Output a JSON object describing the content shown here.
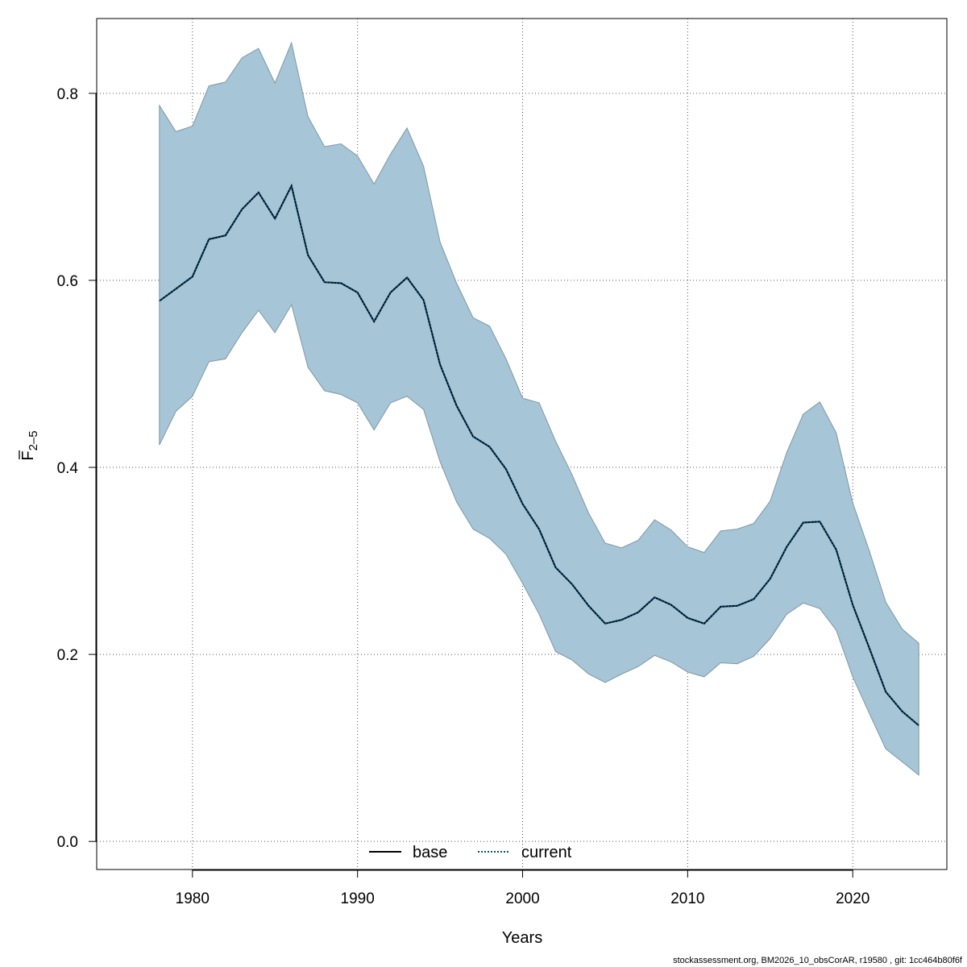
{
  "chart_data": {
    "type": "area",
    "title": "",
    "xlabel": "Years",
    "ylabel_main": "F",
    "ylabel_sub": "2–5",
    "xlim": [
      1974.2,
      2025.7
    ],
    "ylim": [
      -0.03,
      0.88
    ],
    "x_ticks": [
      1980,
      1990,
      2000,
      2010,
      2020
    ],
    "x_tick_labels": [
      "1980",
      "1990",
      "2000",
      "2010",
      "2020"
    ],
    "y_ticks": [
      0.0,
      0.2,
      0.4,
      0.6,
      0.8
    ],
    "y_tick_labels": [
      "0.0",
      "0.2",
      "0.4",
      "0.6",
      "0.8"
    ],
    "grid": true,
    "colors": {
      "band": "#a6c5d6",
      "band_edge": "#7f97a5",
      "current": "#004e7a",
      "base": "#000000",
      "grid": "#555555"
    },
    "x": [
      1978,
      1979,
      1980,
      1981,
      1982,
      1983,
      1984,
      1985,
      1986,
      1987,
      1988,
      1989,
      1990,
      1991,
      1992,
      1993,
      1994,
      1995,
      1996,
      1997,
      1998,
      1999,
      2000,
      2001,
      2002,
      2003,
      2004,
      2005,
      2006,
      2007,
      2008,
      2009,
      2010,
      2011,
      2012,
      2013,
      2014,
      2015,
      2016,
      2017,
      2018,
      2019,
      2020,
      2021,
      2022,
      2023,
      2024
    ],
    "upper": [
      0.787,
      0.759,
      0.765,
      0.808,
      0.812,
      0.838,
      0.848,
      0.811,
      0.854,
      0.775,
      0.743,
      0.746,
      0.733,
      0.703,
      0.735,
      0.763,
      0.722,
      0.641,
      0.597,
      0.56,
      0.551,
      0.516,
      0.474,
      0.469,
      0.428,
      0.392,
      0.351,
      0.319,
      0.314,
      0.322,
      0.344,
      0.333,
      0.315,
      0.309,
      0.332,
      0.334,
      0.34,
      0.364,
      0.416,
      0.457,
      0.47,
      0.437,
      0.362,
      0.311,
      0.256,
      0.227,
      0.212
    ],
    "lower": [
      0.424,
      0.46,
      0.476,
      0.513,
      0.516,
      0.544,
      0.568,
      0.544,
      0.574,
      0.507,
      0.482,
      0.478,
      0.469,
      0.44,
      0.469,
      0.476,
      0.462,
      0.406,
      0.363,
      0.334,
      0.324,
      0.307,
      0.276,
      0.243,
      0.203,
      0.194,
      0.179,
      0.17,
      0.179,
      0.187,
      0.199,
      0.192,
      0.181,
      0.176,
      0.191,
      0.19,
      0.198,
      0.217,
      0.243,
      0.255,
      0.249,
      0.226,
      0.176,
      0.137,
      0.099,
      0.085,
      0.071
    ],
    "series": [
      {
        "name": "base",
        "style": "solid",
        "values": [
          0.578,
          0.591,
          0.604,
          0.644,
          0.648,
          0.676,
          0.694,
          0.666,
          0.701,
          0.627,
          0.598,
          0.597,
          0.587,
          0.556,
          0.587,
          0.603,
          0.579,
          0.51,
          0.466,
          0.433,
          0.422,
          0.398,
          0.361,
          0.334,
          0.293,
          0.275,
          0.252,
          0.233,
          0.237,
          0.245,
          0.261,
          0.253,
          0.239,
          0.233,
          0.251,
          0.252,
          0.259,
          0.281,
          0.315,
          0.341,
          0.342,
          0.312,
          0.253,
          0.207,
          0.16,
          0.139,
          0.124
        ]
      },
      {
        "name": "current",
        "style": "dotted",
        "values": [
          0.578,
          0.591,
          0.604,
          0.644,
          0.648,
          0.676,
          0.694,
          0.666,
          0.701,
          0.627,
          0.598,
          0.597,
          0.587,
          0.556,
          0.587,
          0.603,
          0.579,
          0.51,
          0.466,
          0.433,
          0.422,
          0.398,
          0.361,
          0.334,
          0.293,
          0.275,
          0.252,
          0.233,
          0.237,
          0.245,
          0.261,
          0.253,
          0.239,
          0.233,
          0.251,
          0.252,
          0.259,
          0.281,
          0.315,
          0.341,
          0.342,
          0.312,
          0.253,
          0.207,
          0.16,
          0.139,
          0.124
        ]
      }
    ],
    "legend": {
      "position": "bottom-center",
      "entries": [
        "base",
        "current"
      ]
    }
  },
  "footer": "stockassessment.org, BM2026_10_obsCorAR, r19580 , git: 1cc464b80f6f"
}
